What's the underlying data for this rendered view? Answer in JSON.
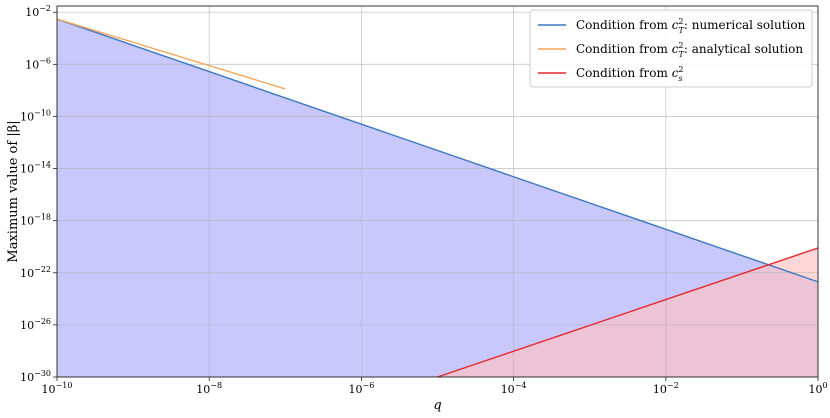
{
  "chart_data": {
    "type": "line",
    "xscale": "log",
    "yscale": "log",
    "xlabel": "q",
    "ylabel": "Maximum value of |β|",
    "xlim": [
      1e-10,
      1
    ],
    "ylim": [
      1e-30,
      0.03
    ],
    "grid": true,
    "legend_position": "top-right",
    "x_ticks": [
      {
        "base": "10",
        "exp": "−10",
        "value": 1e-10
      },
      {
        "base": "10",
        "exp": "−8",
        "value": 1e-08
      },
      {
        "base": "10",
        "exp": "−6",
        "value": 1e-06
      },
      {
        "base": "10",
        "exp": "−4",
        "value": 0.0001
      },
      {
        "base": "10",
        "exp": "−2",
        "value": 0.01
      },
      {
        "base": "10",
        "exp": "0",
        "value": 1
      }
    ],
    "y_ticks": [
      {
        "base": "10",
        "exp": "−2",
        "value": 0.01
      },
      {
        "base": "10",
        "exp": "−6",
        "value": 1e-06
      },
      {
        "base": "10",
        "exp": "−10",
        "value": 1e-10
      },
      {
        "base": "10",
        "exp": "−14",
        "value": 1e-14
      },
      {
        "base": "10",
        "exp": "−18",
        "value": 1e-18
      },
      {
        "base": "10",
        "exp": "−22",
        "value": 1e-22
      },
      {
        "base": "10",
        "exp": "−26",
        "value": 1e-26
      },
      {
        "base": "10",
        "exp": "−30",
        "value": 1e-30
      }
    ],
    "series": [
      {
        "name": "Condition from c_T^2: numerical solution",
        "legend_main": "Condition from ",
        "legend_sym": "c",
        "legend_sup": "2",
        "legend_sub": "T",
        "legend_suffix": ": numerical solution",
        "color": "#3b78c4",
        "fill": "#c8c8fc",
        "x": [
          1e-10,
          1
        ],
        "y": [
          0.003,
          2e-23
        ]
      },
      {
        "name": "Condition from c_T^2: analytical solution",
        "legend_main": "Condition from ",
        "legend_sym": "c",
        "legend_sup": "2",
        "legend_sub": "T",
        "legend_suffix": ": analytical solution",
        "color": "#f5a55a",
        "x": [
          1e-10,
          1e-07
        ],
        "y": [
          0.003,
          1.3e-08
        ]
      },
      {
        "name": "Condition from c_s^2",
        "legend_main": "Condition from ",
        "legend_sym": "c",
        "legend_sup": "2",
        "legend_sub": "s",
        "legend_suffix": "",
        "color": "#e8262b",
        "fill": "#ffc2c2",
        "x": [
          1e-05,
          1
        ],
        "y": [
          1e-30,
          8e-21
        ]
      }
    ]
  }
}
